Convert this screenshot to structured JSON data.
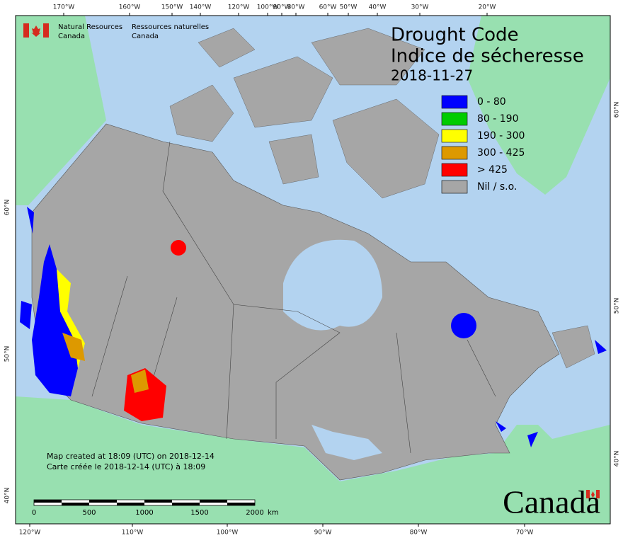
{
  "header": {
    "agency_en": [
      "Natural Resources",
      "Canada"
    ],
    "agency_fr": [
      "Ressources naturelles",
      "Canada"
    ]
  },
  "title": [
    "Drought Code",
    "Indice de sécheresse"
  ],
  "date": "2018-11-27",
  "legend": [
    {
      "label": "0 - 80",
      "color": "#0000ff"
    },
    {
      "label": "80 - 190",
      "color": "#00cc00"
    },
    {
      "label": "190 - 300",
      "color": "#ffff00"
    },
    {
      "label": "300 - 425",
      "color": "#dd9900"
    },
    {
      "label": "> 425",
      "color": "#ff0000"
    },
    {
      "label": "Nil / s.o.",
      "color": "#a6a6a6"
    }
  ],
  "graticule": {
    "top": [
      "170°W",
      "160°W",
      "150°W",
      "140°W",
      "120°W",
      "100°W",
      "90°W",
      "80°W",
      "60°W",
      "50°W",
      "40°W",
      "30°W",
      "20°W"
    ],
    "bottom": [
      "120°W",
      "110°W",
      "100°W",
      "90°W",
      "80°W",
      "70°W"
    ],
    "left": [
      "60°N",
      "50°N",
      "40°N"
    ],
    "right": [
      "60°N",
      "50°N",
      "40°N"
    ]
  },
  "credits": [
    "Map created at 18:09 (UTC) on 2018-12-14",
    "Carte créée le 2018-12-14 (UTC) à 18:09"
  ],
  "scale_bar": {
    "ticks": [
      "0",
      "500",
      "1000",
      "1500",
      "2000"
    ],
    "unit": "km"
  },
  "wordmark": "Canada"
}
